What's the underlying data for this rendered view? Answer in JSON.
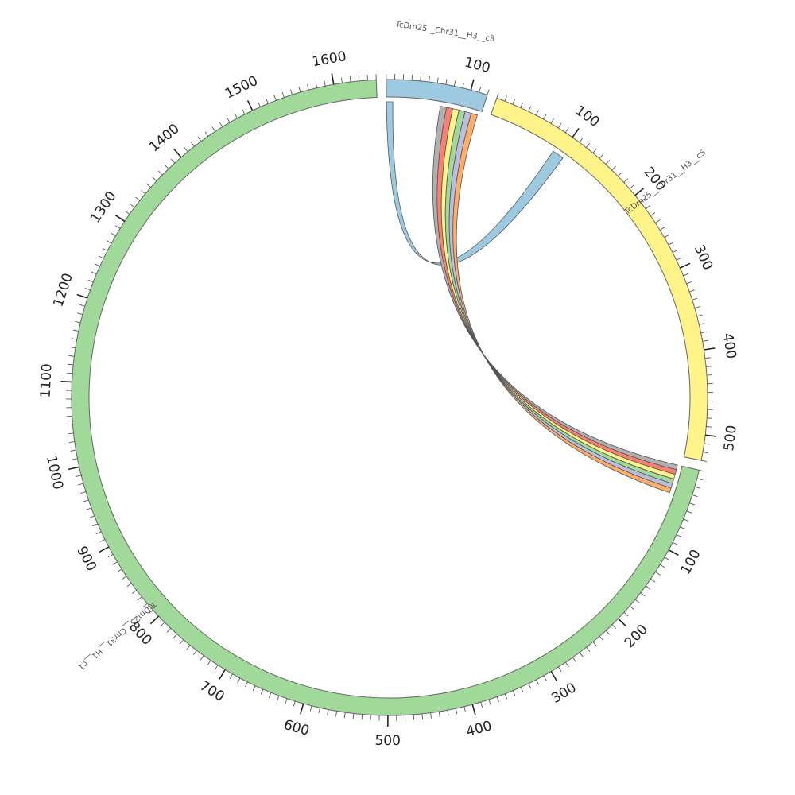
{
  "chart_data": {
    "type": "chord",
    "contigs": [
      {
        "id": "c3",
        "name": "TcDm25__Chr31__H3__c3",
        "length": 120,
        "color": "#9ecae1",
        "tick_labels": [
          "100"
        ]
      },
      {
        "id": "c5",
        "name": "TcDm25__Chr31__H3__c5",
        "length": 530,
        "color": "#fff38a",
        "tick_labels": [
          "100",
          "200",
          "300",
          "400",
          "500"
        ]
      },
      {
        "id": "c1",
        "name": "TcDm25__Chr31__H1__c1",
        "length": 1650,
        "color": "#a1d99b",
        "tick_labels": [
          "100",
          "200",
          "300",
          "400",
          "500",
          "600",
          "700",
          "800",
          "900",
          "1000",
          "1100",
          "1200",
          "1300",
          "1400",
          "1500",
          "1600"
        ]
      }
    ],
    "links": [
      {
        "from": "c3",
        "from_range": [
          0,
          8
        ],
        "to": "c5",
        "to_range": [
          90,
          105
        ],
        "color": "#9ecae1"
      },
      {
        "from": "c3",
        "from_range": [
          68,
          76
        ],
        "to": "c1",
        "to_range": [
          0,
          6
        ],
        "color": "#b0b0b0"
      },
      {
        "from": "c3",
        "from_range": [
          76,
          84
        ],
        "to": "c1",
        "to_range": [
          6,
          12
        ],
        "color": "#fb8072"
      },
      {
        "from": "c3",
        "from_range": [
          84,
          92
        ],
        "to": "c1",
        "to_range": [
          12,
          18
        ],
        "color": "#fff38a"
      },
      {
        "from": "c3",
        "from_range": [
          92,
          100
        ],
        "to": "c1",
        "to_range": [
          18,
          24
        ],
        "color": "#a1d99b"
      },
      {
        "from": "c3",
        "from_range": [
          100,
          108
        ],
        "to": "c1",
        "to_range": [
          24,
          30
        ],
        "color": "#bcbddc"
      },
      {
        "from": "c3",
        "from_range": [
          108,
          116
        ],
        "to": "c1",
        "to_range": [
          30,
          36
        ],
        "color": "#fdae6b"
      }
    ]
  }
}
